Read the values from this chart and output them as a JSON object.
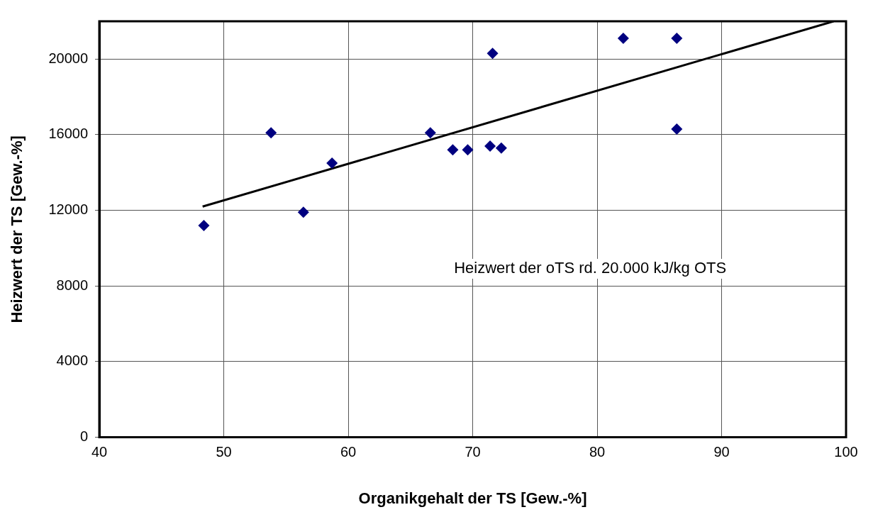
{
  "chart_data": {
    "type": "scatter",
    "xlabel": "Organikgehalt der TS [Gew.-%]",
    "ylabel": "Heizwert der TS [Gew.-%]",
    "xlim": [
      40,
      100
    ],
    "xticks": [
      40,
      50,
      60,
      70,
      80,
      90,
      100
    ],
    "ylim": [
      0,
      22000
    ],
    "yticks": [
      0,
      4000,
      8000,
      12000,
      16000,
      20000
    ],
    "grid": true,
    "legend": false,
    "marker": "diamond",
    "annotations": [
      "Heizwert der oTS rd. 20.000 kJ/kg OTS"
    ],
    "series": [
      {
        "color": "#000080",
        "x": [
          48.4,
          53.8,
          56.4,
          58.7,
          66.6,
          68.4,
          69.6,
          71.4,
          71.6,
          72.3,
          82.1,
          86.4,
          86.4
        ],
        "values": [
          11200,
          16100,
          11900,
          14500,
          16100,
          15200,
          15200,
          15400,
          20300,
          15300,
          21100,
          21100,
          16300
        ]
      },
      {
        "type": "line",
        "color": "#000000",
        "marker": "none",
        "x": [
          48.3,
          99
        ],
        "values": [
          12200,
          22000
        ]
      }
    ]
  }
}
